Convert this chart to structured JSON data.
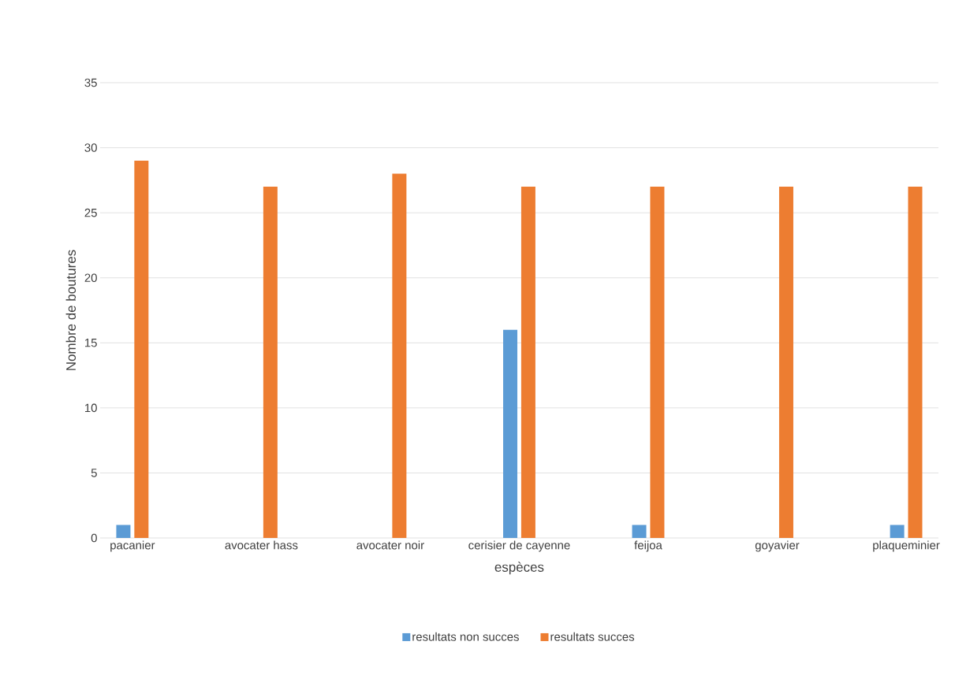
{
  "chart_data": {
    "type": "bar",
    "xlabel": "espèces",
    "ylabel": "Nombre de boutures",
    "categories": [
      "pacanier",
      "avocater hass",
      "avocater noir",
      "cerisier de cayenne",
      "feijoa",
      "goyavier",
      "plaqueminier"
    ],
    "series": [
      {
        "name": "resultats non succes",
        "color": "#5b9bd5",
        "values": [
          1,
          0,
          0,
          16,
          1,
          0,
          1
        ]
      },
      {
        "name": "resultats succes",
        "color": "#ed7d31",
        "values": [
          29,
          27,
          28,
          27,
          27,
          27,
          27
        ]
      }
    ],
    "ylim": [
      0,
      35
    ],
    "yticks": [
      0,
      5,
      10,
      15,
      20,
      25,
      30,
      35
    ],
    "grid": "y",
    "legend": "bottom"
  }
}
